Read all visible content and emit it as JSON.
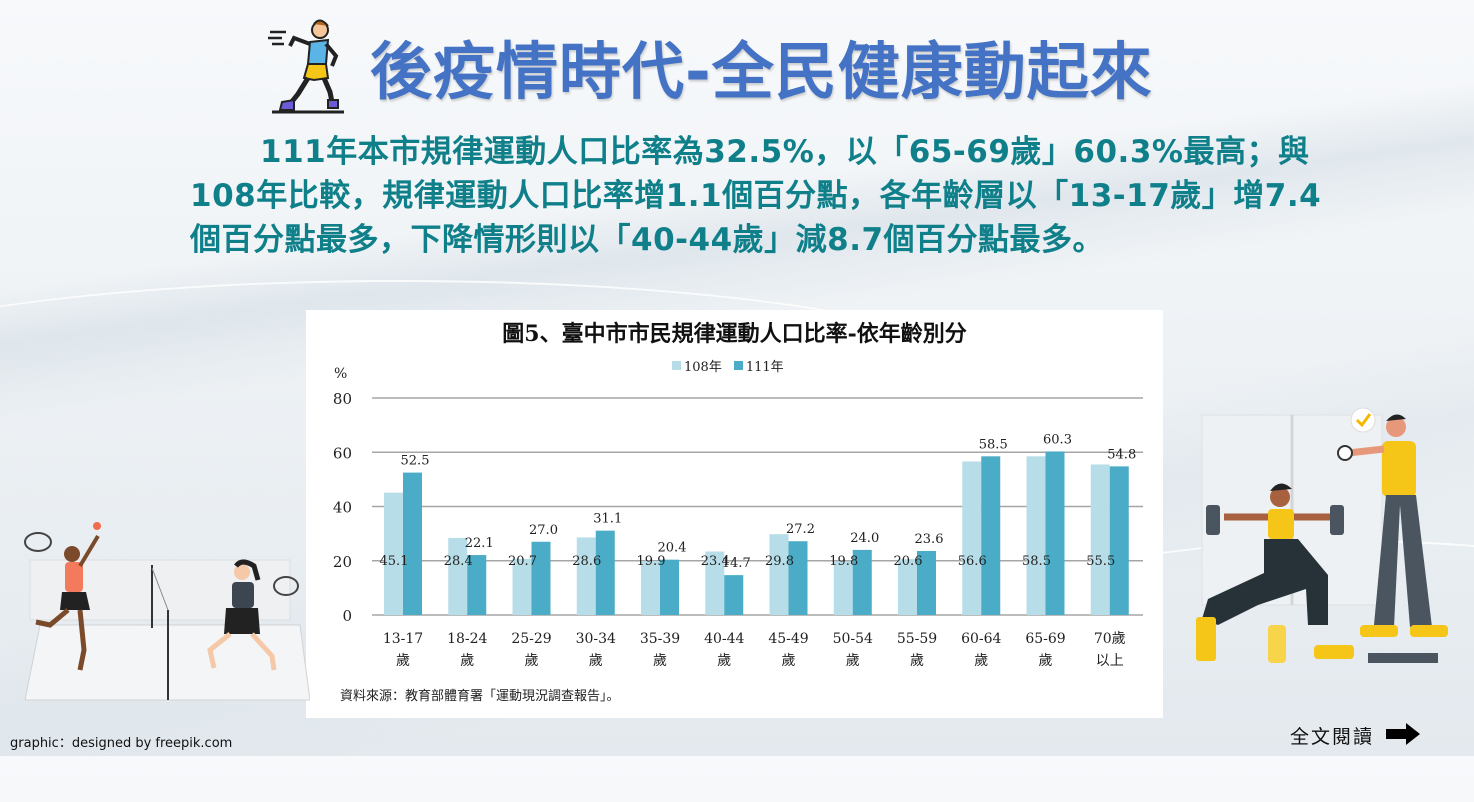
{
  "header": {
    "title": "後疫情時代-全民健康動起來",
    "icon": "runner-icon"
  },
  "summary": {
    "text": "111年本市規律運動人口比率為32.5%，以「65-69歲」60.3%最高；與108年比較，規律運動人口比率增1.1個百分點，各年齡層以「13-17歲」增7.4個百分點最多，下降情形則以「40-44歲」減8.7個百分點最多。"
  },
  "chart": {
    "title": "圖5、臺中市市民規律運動人口比率-依年齡別分",
    "y_unit": "%",
    "source": "資料來源：教育部體育署「運動現況調查報告」。"
  },
  "colors": {
    "title_blue": "#4472c4",
    "summary_teal": "#0f7f8a",
    "series_108": "#b7dde8",
    "series_111": "#4aacc6",
    "gridline": "#a6a6a6"
  },
  "chart_data": {
    "type": "bar",
    "title": "圖5、臺中市市民規律運動人口比率-依年齡別分",
    "xlabel": "",
    "ylabel": "%",
    "ylim": [
      0,
      80
    ],
    "yticks": [
      0,
      20,
      40,
      60,
      80
    ],
    "grid": true,
    "legend_position": "top",
    "categories": [
      "13-17歲",
      "18-24歲",
      "25-29歲",
      "30-34歲",
      "35-39歲",
      "40-44歲",
      "45-49歲",
      "50-54歲",
      "55-59歲",
      "60-64歲",
      "65-69歲",
      "70歲以上"
    ],
    "category_lines": [
      [
        "13-17",
        "歲"
      ],
      [
        "18-24",
        "歲"
      ],
      [
        "25-29",
        "歲"
      ],
      [
        "30-34",
        "歲"
      ],
      [
        "35-39",
        "歲"
      ],
      [
        "40-44",
        "歲"
      ],
      [
        "45-49",
        "歲"
      ],
      [
        "50-54",
        "歲"
      ],
      [
        "55-59",
        "歲"
      ],
      [
        "60-64",
        "歲"
      ],
      [
        "65-69",
        "歲"
      ],
      [
        "70歲",
        "以上"
      ]
    ],
    "series": [
      {
        "name": "108年",
        "values": [
          45.1,
          28.4,
          20.7,
          28.6,
          19.9,
          23.4,
          29.8,
          19.8,
          20.6,
          56.6,
          58.5,
          55.5
        ]
      },
      {
        "name": "111年",
        "values": [
          52.5,
          22.1,
          27.0,
          31.1,
          20.4,
          14.7,
          27.2,
          24.0,
          23.6,
          58.5,
          60.3,
          54.8
        ]
      }
    ]
  },
  "footer": {
    "credit": "graphic：designed by freepik.com",
    "read_more_label": "全文閱讀",
    "read_more_icon": "arrow-right-icon"
  }
}
